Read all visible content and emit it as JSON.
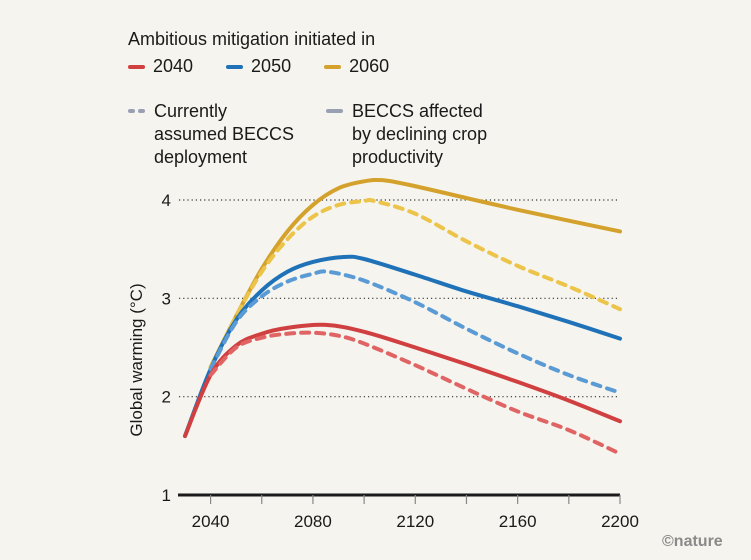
{
  "legend": {
    "title": "Ambitious mitigation initiated in",
    "start_years": [
      {
        "label": "2040",
        "color": "#d04040"
      },
      {
        "label": "2050",
        "color": "#1f72b8"
      },
      {
        "label": "2060",
        "color": "#d4a22c"
      }
    ],
    "styles": [
      {
        "label_lines": [
          "Currently",
          "assumed BECCS",
          "deployment"
        ],
        "style": "dashed"
      },
      {
        "label_lines": [
          "BECCS affected",
          "by declining crop",
          "productivity"
        ],
        "style": "solid"
      }
    ]
  },
  "credit": "©nature",
  "chart_data": {
    "type": "line",
    "title": "",
    "xlabel": "",
    "ylabel": "Global warming (°C)",
    "xlim": [
      2030,
      2200
    ],
    "ylim": [
      1,
      4
    ],
    "x_ticks": [
      2040,
      2060,
      2080,
      2100,
      2120,
      2140,
      2160,
      2180,
      2200
    ],
    "x_tick_labels": [
      "2040",
      "2080",
      "2120",
      "2160",
      "2200"
    ],
    "y_ticks": [
      1,
      2,
      3,
      4
    ],
    "y_tick_labels": [
      "1",
      "2",
      "3",
      "4"
    ],
    "grid": "horizontal dotted",
    "series": [
      {
        "name": "2060 – BECCS affected by declining crop productivity",
        "color": "#d4a22c",
        "style": "solid",
        "x": [
          2040,
          2050,
          2060,
          2070,
          2080,
          2090,
          2100,
          2108,
          2120,
          2140,
          2160,
          2180,
          2200
        ],
        "y": [
          2.3,
          2.82,
          3.3,
          3.68,
          3.95,
          4.12,
          4.19,
          4.2,
          4.14,
          4.02,
          3.9,
          3.79,
          3.68
        ]
      },
      {
        "name": "2060 – Currently assumed BECCS deployment",
        "color": "#ecc44a",
        "style": "dashed",
        "x": [
          2040,
          2050,
          2060,
          2070,
          2080,
          2090,
          2100,
          2104,
          2120,
          2140,
          2160,
          2180,
          2200
        ],
        "y": [
          2.3,
          2.82,
          3.27,
          3.6,
          3.83,
          3.95,
          3.99,
          3.99,
          3.86,
          3.58,
          3.33,
          3.12,
          2.89
        ]
      },
      {
        "name": "2050 – BECCS affected by declining crop productivity",
        "color": "#1f72b8",
        "style": "solid",
        "x": [
          2030,
          2040,
          2050,
          2060,
          2070,
          2080,
          2092,
          2100,
          2120,
          2140,
          2160,
          2180,
          2200
        ],
        "y": [
          1.6,
          2.28,
          2.78,
          3.08,
          3.27,
          3.37,
          3.42,
          3.4,
          3.24,
          3.07,
          2.92,
          2.76,
          2.59
        ]
      },
      {
        "name": "2050 – Currently assumed BECCS deployment",
        "color": "#5b9bd5",
        "style": "dashed",
        "x": [
          2040,
          2050,
          2060,
          2070,
          2080,
          2086,
          2100,
          2120,
          2140,
          2160,
          2180,
          2200
        ],
        "y": [
          2.28,
          2.76,
          3.02,
          3.17,
          3.25,
          3.27,
          3.18,
          2.96,
          2.69,
          2.44,
          2.22,
          2.04
        ]
      },
      {
        "name": "2040 – BECCS affected by declining crop productivity",
        "color": "#d04040",
        "style": "solid",
        "x": [
          2030,
          2040,
          2050,
          2060,
          2070,
          2085,
          2100,
          2120,
          2140,
          2160,
          2180,
          2200
        ],
        "y": [
          1.6,
          2.22,
          2.52,
          2.64,
          2.7,
          2.73,
          2.66,
          2.5,
          2.33,
          2.15,
          1.96,
          1.75
        ]
      },
      {
        "name": "2040 – Currently assumed BECCS deployment",
        "color": "#e06464",
        "style": "dashed",
        "x": [
          2040,
          2050,
          2060,
          2070,
          2080,
          2090,
          2100,
          2120,
          2140,
          2160,
          2180,
          2200
        ],
        "y": [
          2.22,
          2.5,
          2.6,
          2.64,
          2.65,
          2.62,
          2.54,
          2.32,
          2.08,
          1.85,
          1.66,
          1.42
        ]
      }
    ]
  }
}
